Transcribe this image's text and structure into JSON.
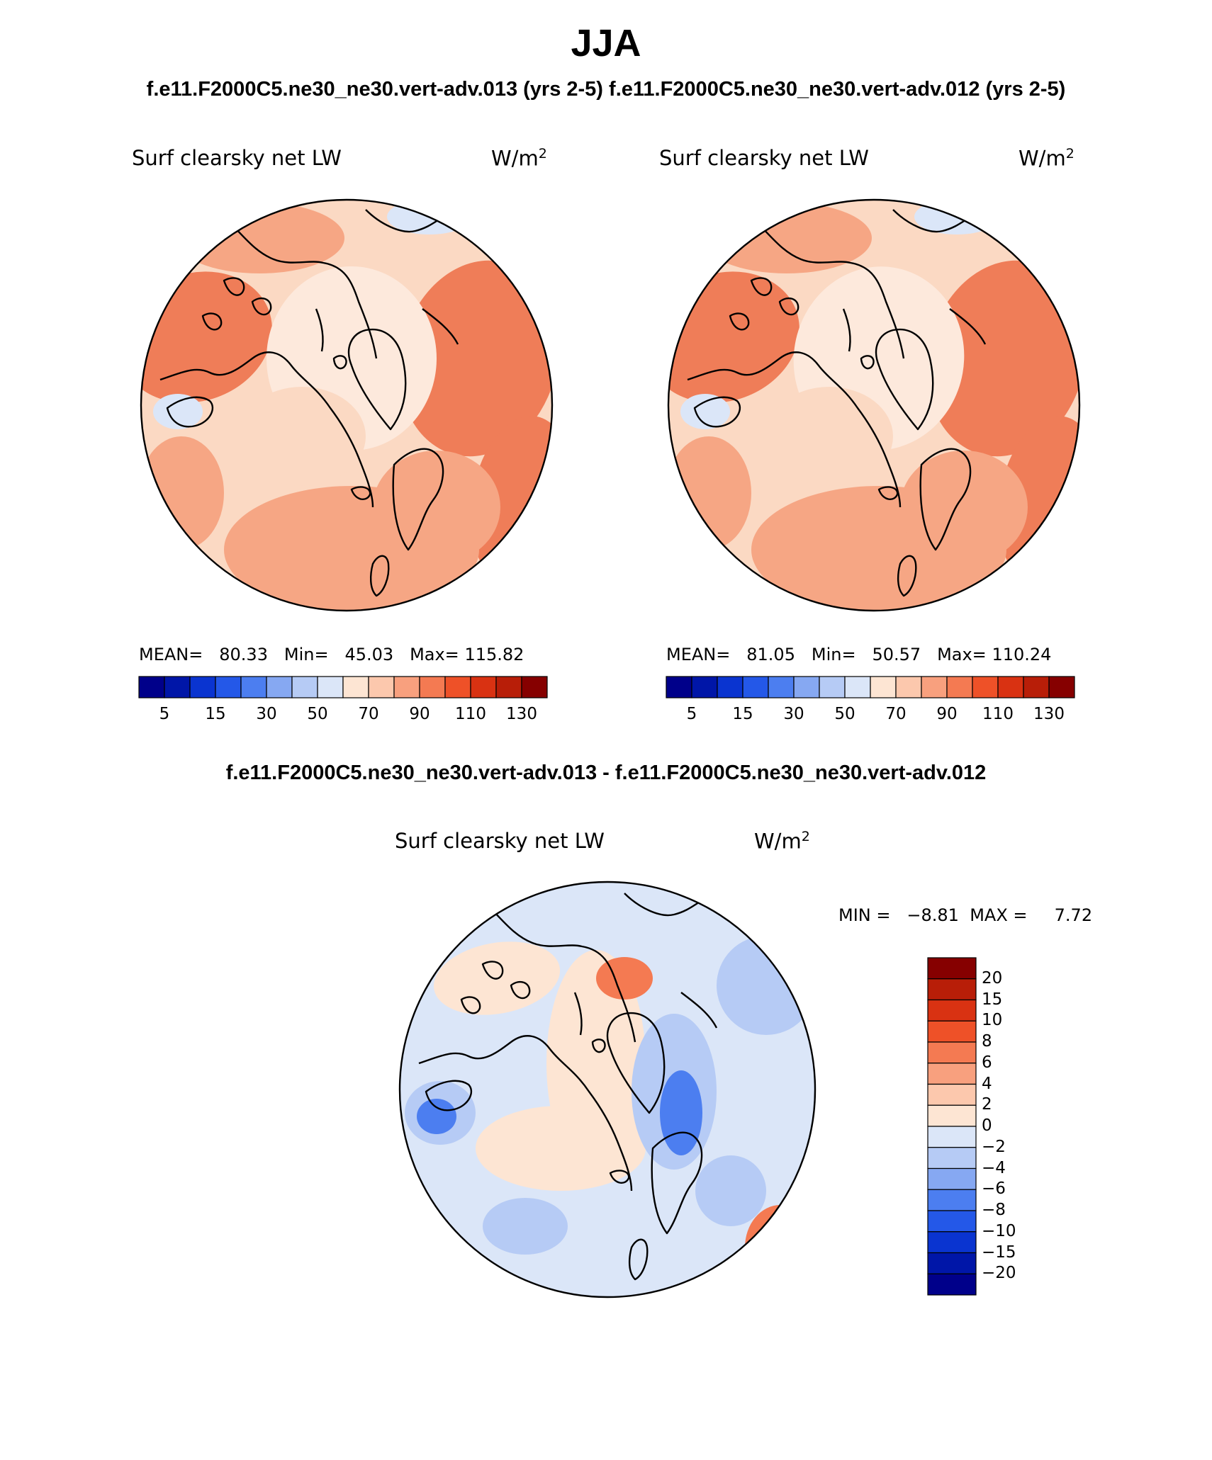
{
  "season": "JJA",
  "case1_title": "f.e11.F2000C5.ne30_ne30.vert-adv.013 (yrs 2-5)",
  "case2_title": "f.e11.F2000C5.ne30_ne30.vert-adv.012 (yrs 2-5)",
  "diff_title": "f.e11.F2000C5.ne30_ne30.vert-adv.013 - f.e11.F2000C5.ne30_ne30.vert-adv.012",
  "panels": [
    {
      "variable": "Surf clearsky net LW",
      "units": "W/m",
      "units_exp": "2",
      "stats": {
        "mean_label": "MEAN=",
        "mean": "80.33",
        "min_label": "Min=",
        "min": "45.03",
        "max_label": "Max=",
        "max": "115.82"
      }
    },
    {
      "variable": "Surf clearsky net LW",
      "units": "W/m",
      "units_exp": "2",
      "stats": {
        "mean_label": "MEAN=",
        "mean": "81.05",
        "min_label": "Min=",
        "min": "50.57",
        "max_label": "Max=",
        "max": "110.24"
      }
    },
    {
      "variable": "Surf clearsky net LW",
      "units": "W/m",
      "units_exp": "2",
      "minmax": {
        "min_label": "MIN =",
        "min": "−8.81",
        "max_label": "MAX =",
        "max": "7.72"
      }
    }
  ],
  "abs_colorbar": {
    "colors": [
      "#00008a",
      "#0016a8",
      "#0a34d0",
      "#2458e8",
      "#4c7ef0",
      "#86a8f2",
      "#b6cbf5",
      "#dbe6f8",
      "#fde5d3",
      "#fcc8ad",
      "#f8a07e",
      "#f47a52",
      "#ee5128",
      "#d93212",
      "#b81e08",
      "#860000"
    ],
    "tick_labels": [
      "5",
      "15",
      "30",
      "50",
      "70",
      "90",
      "110",
      "130"
    ]
  },
  "diff_colorbar": {
    "colors": [
      "#00008a",
      "#0016a8",
      "#0a34d0",
      "#2458e8",
      "#4c7ef0",
      "#86a8f2",
      "#b6cbf5",
      "#dbe6f8",
      "#fde5d3",
      "#fcc8ad",
      "#f8a07e",
      "#f47a52",
      "#ee5128",
      "#d93212",
      "#b81e08",
      "#860000"
    ],
    "tick_labels": [
      "20",
      "15",
      "10",
      "8",
      "6",
      "4",
      "2",
      "0",
      "−2",
      "−4",
      "−6",
      "−8",
      "−10",
      "−15",
      "−20"
    ]
  },
  "map_palette": {
    "ocean_abs": "#fbd9c3",
    "land_abs_a": "#f6a684",
    "land_abs_b": "#ef7d58",
    "core_abs": "#fde9dc",
    "diff_base": "#dbe6f8",
    "diff_pos": "#fde5d3",
    "diff_neg": "#b6cbf5",
    "diff_neg_strong": "#4c7ef0",
    "diff_pos_strong": "#f47a52"
  }
}
